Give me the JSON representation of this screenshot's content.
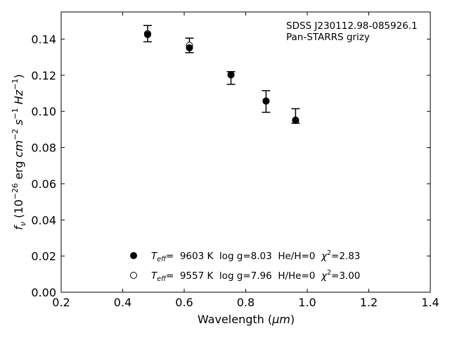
{
  "chart_data": {
    "type": "scatter",
    "title": "",
    "xlabel_prefix": "Wavelength (",
    "xlabel_unit": "μm",
    "xlabel_suffix": ")",
    "ylabel_parts": {
      "f": "f",
      "nu": "ν",
      "open": " (10",
      "exp26": "−26",
      "erg": " erg ",
      "cm": "cm",
      "cmexp": "−2",
      "s": " s",
      "sexp": "−1",
      "hz": " Hz",
      "hzexp": "−1",
      "close": ")"
    },
    "xlim": [
      0.2,
      1.4
    ],
    "ylim": [
      0.0,
      0.155
    ],
    "xticks": [
      0.2,
      0.4,
      0.6,
      0.8,
      1.0,
      1.2,
      1.4
    ],
    "xtick_labels": [
      "0.2",
      "0.4",
      "0.6",
      "0.8",
      "1.0",
      "1.2",
      "1.4"
    ],
    "yticks": [
      0.0,
      0.02,
      0.04,
      0.06,
      0.08,
      0.1,
      0.12,
      0.14
    ],
    "ytick_labels": [
      "0.00",
      "0.02",
      "0.04",
      "0.06",
      "0.08",
      "0.10",
      "0.12",
      "0.14"
    ],
    "grid": false,
    "annotation": [
      "SDSS J230112.98-085926.1",
      "Pan-STARRS grizy"
    ],
    "observed": {
      "x": [
        0.481,
        0.617,
        0.752,
        0.866,
        0.962
      ],
      "y": [
        0.143,
        0.1365,
        0.1185,
        0.1055,
        0.0975
      ],
      "yerr": [
        0.0045,
        0.004,
        0.0035,
        0.006,
        0.004
      ]
    },
    "series": [
      {
        "marker": "filled",
        "x": [
          0.481,
          0.617,
          0.752,
          0.866,
          0.962
        ],
        "y": [
          0.1425,
          0.1352,
          0.1202,
          0.1058,
          0.0952
        ]
      },
      {
        "marker": "open",
        "x": [
          0.481,
          0.617,
          0.752,
          0.866,
          0.962
        ],
        "y": [
          0.143,
          0.1365,
          0.1203,
          0.1057,
          0.095
        ]
      }
    ],
    "legend": {
      "placement": "lower-center",
      "entries": [
        {
          "marker": "filled",
          "t": "T",
          "sub": "eff",
          "text": "=  9603 K  log g=8.03  He/H=0  ",
          "chi": "χ",
          "chiexp": "2",
          "chival": "=2.83"
        },
        {
          "marker": "open",
          "t": "T",
          "sub": "eff",
          "text": "=  9557 K  log g=7.96  H/He=0  ",
          "chi": "χ",
          "chiexp": "2",
          "chival": "=3.00"
        }
      ]
    }
  }
}
